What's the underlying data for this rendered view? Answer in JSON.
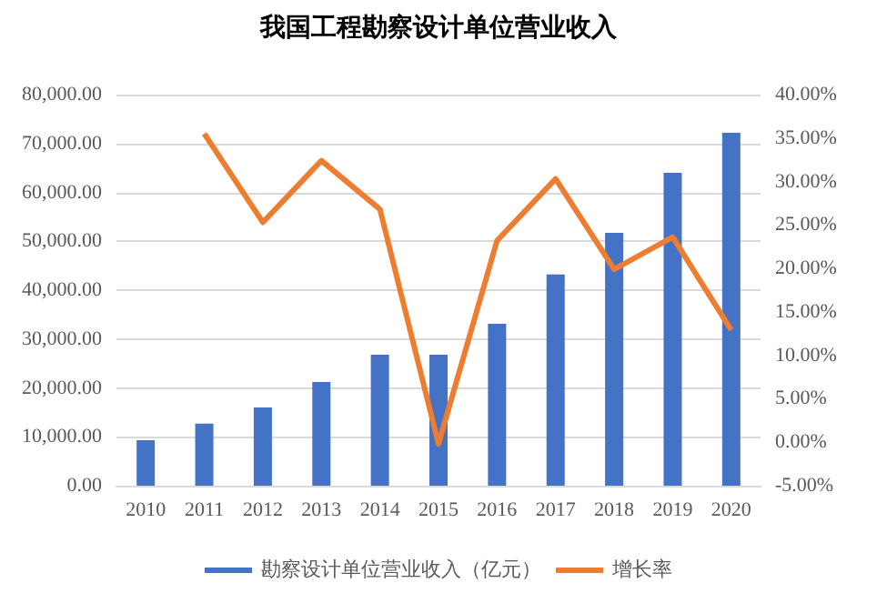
{
  "chart_data": {
    "type": "bar",
    "title": "我国工程勘察设计单位营业收入",
    "categories": [
      "2010",
      "2011",
      "2012",
      "2013",
      "2014",
      "2015",
      "2016",
      "2017",
      "2018",
      "2019",
      "2020"
    ],
    "series": [
      {
        "name": "勘察设计单位营业收入（亿元）",
        "color": "#4472c4",
        "values": [
          9300,
          12700,
          16000,
          21200,
          26800,
          26800,
          33100,
          43200,
          51700,
          64000,
          72200
        ]
      },
      {
        "name": "增长率",
        "type": "line",
        "axis": "y2",
        "color": "#ed7d31",
        "marker": "none",
        "values": [
          null,
          35.5,
          25.3,
          32.4,
          26.8,
          -0.2,
          23.2,
          30.3,
          19.9,
          23.6,
          12.9
        ]
      }
    ],
    "ylim": [
      0,
      80000
    ],
    "yticks": [
      {
        "value": 0,
        "label": "0.00"
      },
      {
        "value": 10000,
        "label": "10,000.00"
      },
      {
        "value": 20000,
        "label": "20,000.00"
      },
      {
        "value": 30000,
        "label": "30,000.00"
      },
      {
        "value": 40000,
        "label": "40,000.00"
      },
      {
        "value": 50000,
        "label": "50,000.00"
      },
      {
        "value": 60000,
        "label": "60,000.00"
      },
      {
        "value": 70000,
        "label": "70,000.00"
      },
      {
        "value": 80000,
        "label": "80,000.00"
      }
    ],
    "y2lim": [
      -5,
      40
    ],
    "y2ticks": [
      {
        "value": -5,
        "label": "-5.00%"
      },
      {
        "value": 0,
        "label": "0.00%"
      },
      {
        "value": 5,
        "label": "5.00%"
      },
      {
        "value": 10,
        "label": "10.00%"
      },
      {
        "value": 15,
        "label": "15.00%"
      },
      {
        "value": 20,
        "label": "20.00%"
      },
      {
        "value": 25,
        "label": "25.00%"
      },
      {
        "value": 30,
        "label": "30.00%"
      },
      {
        "value": 35,
        "label": "35.00%"
      },
      {
        "value": 40,
        "label": "40.00%"
      }
    ],
    "grid": "y",
    "legend": "bottom"
  }
}
